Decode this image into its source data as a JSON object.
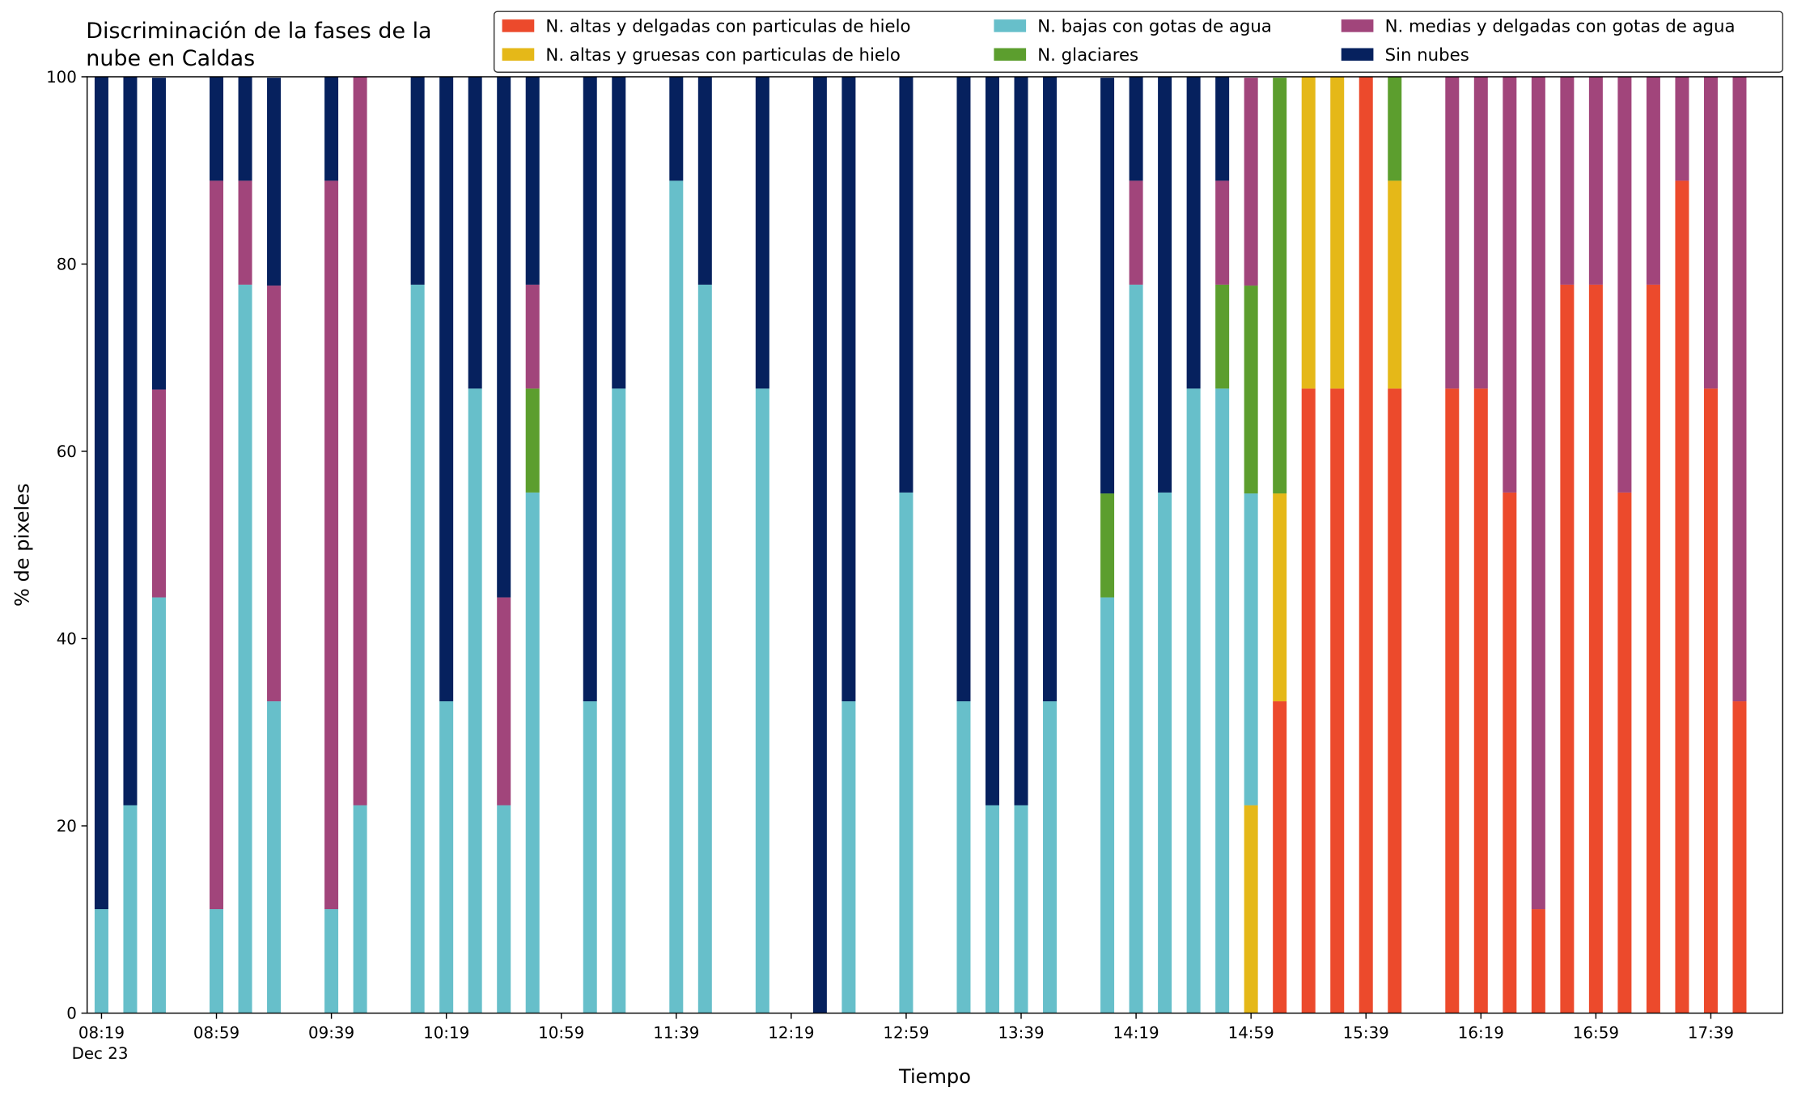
{
  "chart_data": {
    "type": "stacked_bar",
    "title": "Discriminación de la fases de la\nnube en Caldas",
    "xlabel": "Tiempo",
    "ylabel": "% de pixeles",
    "x_date_label": "Dec 23",
    "x": [
      "08:19",
      "08:29",
      "08:39",
      "08:59",
      "09:09",
      "09:19",
      "09:39",
      "09:49",
      "10:09",
      "10:19",
      "10:29",
      "10:39",
      "10:49",
      "11:09",
      "11:19",
      "11:39",
      "11:49",
      "12:09",
      "12:29",
      "12:39",
      "12:59",
      "13:19",
      "13:29",
      "13:39",
      "13:49",
      "14:09",
      "14:19",
      "14:29",
      "14:39",
      "14:49",
      "14:59",
      "15:09",
      "15:19",
      "15:29",
      "15:39",
      "15:49",
      "16:09",
      "16:19",
      "16:29",
      "16:39",
      "16:49",
      "16:59",
      "17:09",
      "17:19",
      "17:29",
      "17:39",
      "17:49"
    ],
    "series": [
      {
        "name": "N. altas y delgadas con particulas de hielo",
        "color": "#ec4a2c",
        "values": [
          0,
          0,
          0,
          0,
          0,
          0,
          0,
          0,
          0,
          0,
          0,
          0,
          0,
          0,
          0,
          0,
          0,
          0,
          0,
          0,
          0,
          0,
          0,
          0,
          0,
          0,
          0,
          0,
          0,
          0,
          0,
          33.3,
          66.7,
          66.7,
          100,
          66.7,
          66.7,
          66.7,
          55.6,
          11.1,
          77.8,
          77.8,
          55.6,
          77.8,
          88.9,
          66.7,
          33.3
        ]
      },
      {
        "name": "N. altas y gruesas con particulas de hielo",
        "color": "#e5b818",
        "values": [
          0,
          0,
          0,
          0,
          0,
          0,
          0,
          0,
          0,
          0,
          0,
          0,
          0,
          0,
          0,
          0,
          0,
          0,
          0,
          0,
          0,
          0,
          0,
          0,
          0,
          0,
          0,
          0,
          0,
          0,
          22.2,
          22.2,
          33.3,
          33.3,
          0,
          22.2,
          0,
          0,
          0,
          0,
          0,
          0,
          0,
          0,
          0,
          0,
          0
        ]
      },
      {
        "name": "N. bajas con gotas de agua",
        "color": "#67bfca",
        "values": [
          11.1,
          22.2,
          44.4,
          11.1,
          77.8,
          33.3,
          11.1,
          22.2,
          77.8,
          33.3,
          66.7,
          22.2,
          55.6,
          33.3,
          66.7,
          88.9,
          77.8,
          66.7,
          0,
          33.3,
          55.6,
          33.3,
          22.2,
          22.2,
          33.3,
          44.4,
          77.8,
          55.6,
          66.7,
          66.7,
          33.3,
          0,
          0,
          0,
          0,
          0,
          0,
          0,
          0,
          0,
          0,
          0,
          0,
          0,
          0,
          0,
          0
        ]
      },
      {
        "name": "N. glaciares",
        "color": "#5c9e2e",
        "values": [
          0,
          0,
          0,
          0,
          0,
          0,
          0,
          0,
          0,
          0,
          0,
          0,
          11.1,
          0,
          0,
          0,
          0,
          0,
          0,
          0,
          0,
          0,
          0,
          0,
          0,
          11.1,
          0,
          0,
          0,
          11.1,
          22.2,
          44.4,
          0,
          0,
          0,
          11.1,
          0,
          0,
          0,
          0,
          0,
          0,
          0,
          0,
          0,
          0,
          0
        ]
      },
      {
        "name": "N. medias y delgadas con gotas de agua",
        "color": "#a1457b",
        "values": [
          0,
          0,
          22.2,
          77.8,
          11.1,
          44.4,
          77.8,
          77.8,
          0,
          0,
          0,
          22.2,
          11.1,
          0,
          0,
          0,
          0,
          0,
          0,
          0,
          0,
          0,
          0,
          0,
          0,
          0,
          11.1,
          0,
          0,
          11.1,
          22.2,
          0,
          0,
          0,
          0,
          0,
          33.3,
          33.3,
          44.4,
          88.9,
          22.2,
          22.2,
          44.4,
          22.2,
          11.1,
          33.3,
          66.7
        ]
      },
      {
        "name": "Sin nubes",
        "color": "#06215e",
        "values": [
          88.9,
          77.8,
          33.3,
          11.1,
          11.1,
          22.2,
          11.1,
          0,
          22.2,
          66.7,
          33.3,
          55.6,
          22.2,
          66.7,
          33.3,
          11.1,
          22.2,
          33.3,
          100,
          66.7,
          44.4,
          66.7,
          77.8,
          77.8,
          66.7,
          44.4,
          11.1,
          44.4,
          33.3,
          11.1,
          0,
          0,
          0,
          0,
          0,
          0,
          0,
          0,
          0,
          0,
          0,
          0,
          0,
          0,
          0,
          0,
          0
        ]
      }
    ],
    "xlim": [
      "08:14",
      "18:04"
    ],
    "xticks": [
      "08:19",
      "08:59",
      "09:39",
      "10:19",
      "10:59",
      "11:39",
      "12:19",
      "12:59",
      "13:39",
      "14:19",
      "14:59",
      "15:39",
      "16:19",
      "16:59",
      "17:39"
    ],
    "ylim": [
      0,
      100
    ],
    "yticks": [
      0,
      20,
      40,
      60,
      80,
      100
    ],
    "legend": "top right",
    "grid": false
  }
}
